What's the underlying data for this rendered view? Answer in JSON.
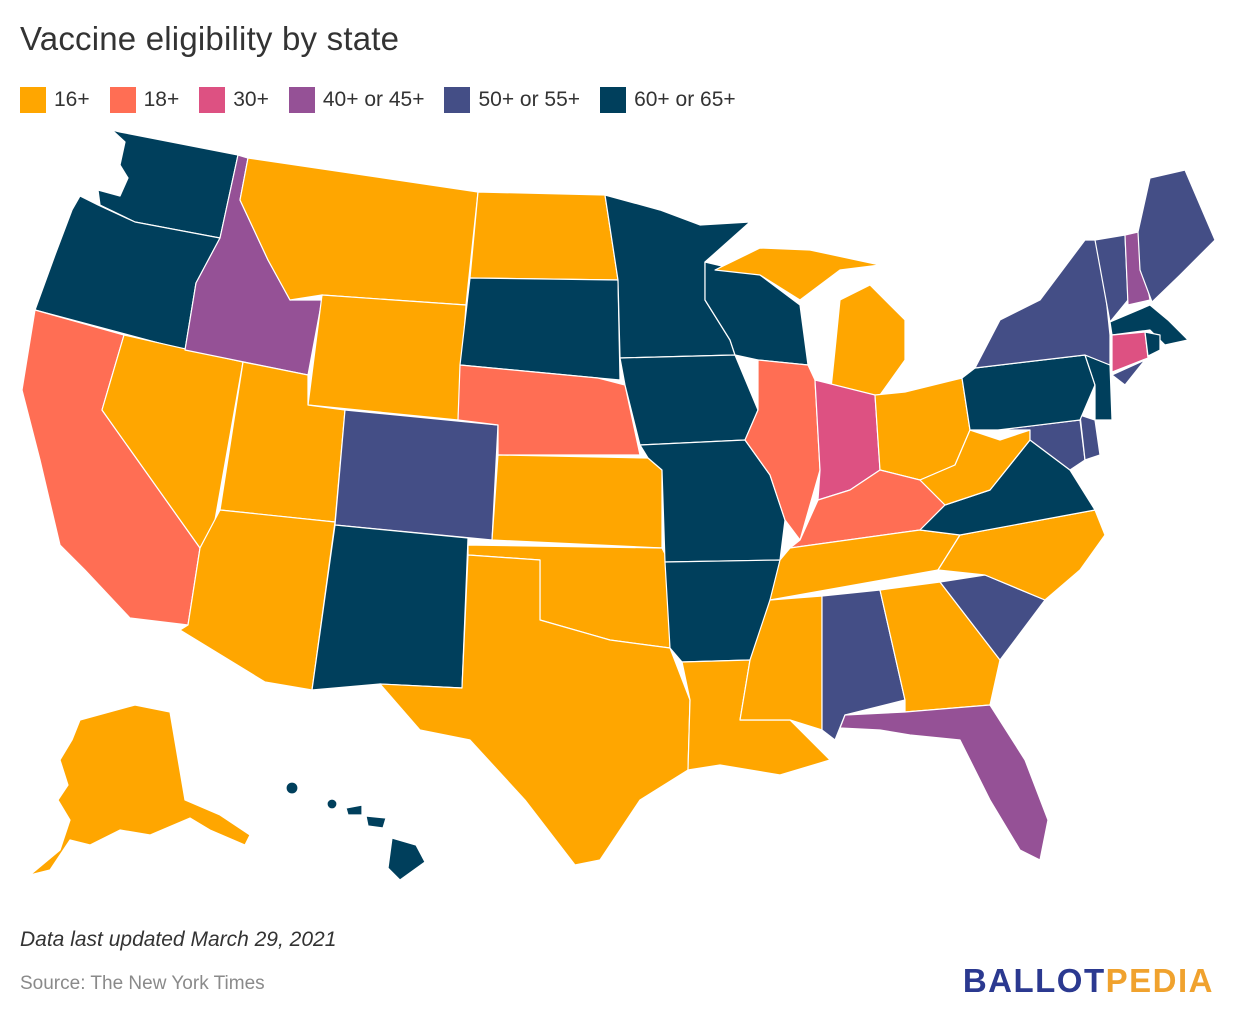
{
  "title": "Vaccine eligibility by state",
  "legend": [
    {
      "key": "16",
      "label": "16+",
      "color": "#FFA600"
    },
    {
      "key": "18",
      "label": "18+",
      "color": "#FF6E54"
    },
    {
      "key": "30",
      "label": "30+",
      "color": "#DD5182"
    },
    {
      "key": "40",
      "label": "40+ or 45+",
      "color": "#955196"
    },
    {
      "key": "50",
      "label": "50+ or 55+",
      "color": "#444E86"
    },
    {
      "key": "60",
      "label": "60+ or 65+",
      "color": "#003F5C"
    }
  ],
  "states": {
    "WA": "60",
    "OR": "60",
    "CA": "18",
    "NV": "16",
    "ID": "40",
    "MT": "16",
    "WY": "16",
    "UT": "16",
    "AZ": "16",
    "CO": "50",
    "NM": "60",
    "ND": "16",
    "SD": "60",
    "NE": "18",
    "KS": "16",
    "OK": "16",
    "TX": "16",
    "MN": "60",
    "IA": "60",
    "MO": "60",
    "AR": "60",
    "LA": "16",
    "WI": "60",
    "IL": "18",
    "MI": "16",
    "IN": "30",
    "OH": "16",
    "KY": "18",
    "TN": "16",
    "MS": "16",
    "AL": "50",
    "GA": "16",
    "FL": "40",
    "SC": "50",
    "NC": "16",
    "VA": "60",
    "WV": "16",
    "MD": "50",
    "DE": "50",
    "PA": "60",
    "NJ": "60",
    "NY": "50",
    "CT": "30",
    "RI": "60",
    "MA": "60",
    "VT": "50",
    "NH": "40",
    "ME": "50",
    "AK": "16",
    "HI": "60"
  },
  "note": "Data last updated March 29, 2021",
  "source": "Source: The New York Times",
  "logo": {
    "part1": "BALLOT",
    "part2": "PEDIA"
  }
}
